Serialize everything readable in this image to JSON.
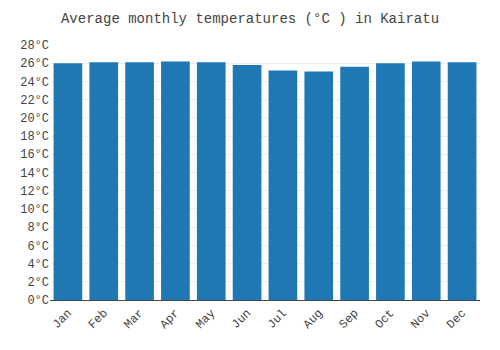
{
  "chart_data": {
    "type": "bar",
    "title": "Average monthly temperatures (°C ) in Kairatu",
    "categories": [
      "Jan",
      "Feb",
      "Mar",
      "Apr",
      "May",
      "Jun",
      "Jul",
      "Aug",
      "Sep",
      "Oct",
      "Nov",
      "Dec"
    ],
    "values": [
      26.0,
      26.1,
      26.1,
      26.2,
      26.1,
      25.8,
      25.2,
      25.1,
      25.6,
      26.0,
      26.2,
      26.1
    ],
    "ylim": [
      0,
      28
    ],
    "yticks": [
      {
        "value": 0,
        "label": "0°C"
      },
      {
        "value": 2,
        "label": "2°C"
      },
      {
        "value": 4,
        "label": "4°C"
      },
      {
        "value": 6,
        "label": "6°C"
      },
      {
        "value": 8,
        "label": "8°C"
      },
      {
        "value": 10,
        "label": "10°C"
      },
      {
        "value": 12,
        "label": "12°C"
      },
      {
        "value": 14,
        "label": "14°C"
      },
      {
        "value": 16,
        "label": "16°C"
      },
      {
        "value": 18,
        "label": "18°C"
      },
      {
        "value": 20,
        "label": "20°C"
      },
      {
        "value": 22,
        "label": "22°C"
      },
      {
        "value": 24,
        "label": "24°C"
      },
      {
        "value": 26,
        "label": "26°C"
      },
      {
        "value": 28,
        "label": "28°C"
      }
    ],
    "grid": true
  }
}
